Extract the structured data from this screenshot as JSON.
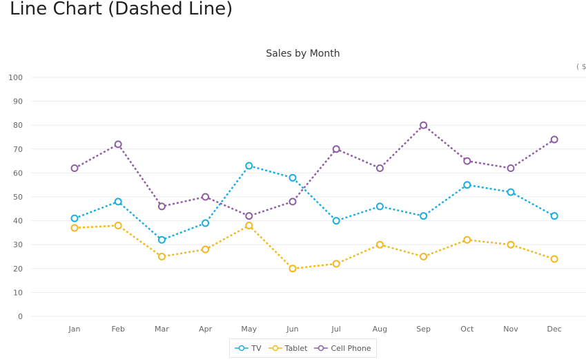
{
  "page": {
    "title": "Line Chart (Dashed Line)"
  },
  "colors": {
    "grid": "#ececec",
    "axis_text": "#666666"
  },
  "chart_data": {
    "type": "line",
    "title": "Sales by Month",
    "unit_label": "( $",
    "xlabel": "",
    "ylabel": "",
    "categories": [
      "Jan",
      "Feb",
      "Mar",
      "Apr",
      "May",
      "Jun",
      "Jul",
      "Aug",
      "Sep",
      "Oct",
      "Nov",
      "Dec"
    ],
    "ylim": [
      0,
      100
    ],
    "yticks": [
      0,
      10,
      20,
      30,
      40,
      50,
      60,
      70,
      80,
      90,
      100
    ],
    "grid": true,
    "legend_position": "bottom",
    "line_style": "dashed",
    "series": [
      {
        "name": "TV",
        "color": "#1aaee0",
        "values": [
          41,
          48,
          32,
          39,
          63,
          58,
          40,
          46,
          42,
          55,
          52,
          42
        ]
      },
      {
        "name": "Tablet",
        "color": "#f2b81c",
        "values": [
          37,
          38,
          25,
          28,
          38,
          20,
          22,
          30,
          25,
          32,
          30,
          24
        ]
      },
      {
        "name": "Cell Phone",
        "color": "#8e5ea2",
        "values": [
          62,
          72,
          46,
          50,
          42,
          48,
          70,
          62,
          80,
          65,
          62,
          74
        ]
      }
    ]
  }
}
